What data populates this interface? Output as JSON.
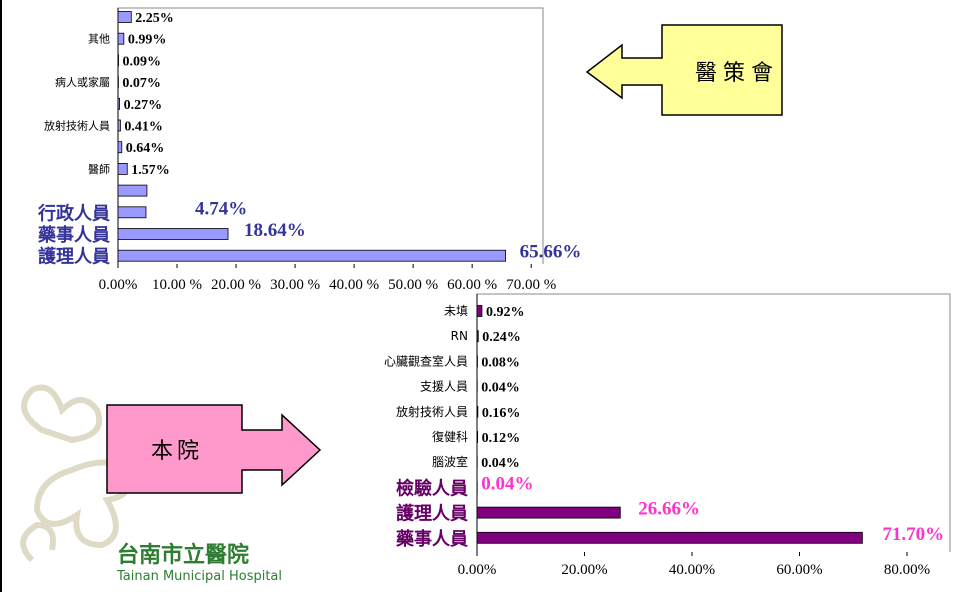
{
  "chart_data": [
    {
      "type": "bar",
      "orientation": "horizontal",
      "categories": [
        null,
        "其他",
        null,
        "病人或家屬",
        null,
        "放射技術人員",
        null,
        "醫師",
        null,
        "行政人員",
        "藥事人員",
        "護理人員"
      ],
      "values": [
        2.25,
        0.99,
        0.09,
        0.07,
        0.27,
        0.41,
        0.64,
        1.57,
        4.9,
        4.74,
        18.64,
        65.66
      ],
      "value_labels": [
        "2.25%",
        "0.99%",
        "0.09%",
        "0.07%",
        "0.27%",
        "0.41%",
        "0.64%",
        "1.57%",
        null,
        "4.74%",
        "18.64%",
        "65.66%"
      ],
      "color": "#9999ff",
      "label_color": "#333399",
      "value_label_color": "#333399",
      "xlim": [
        0,
        72
      ],
      "xticks": [
        {
          "value": 0,
          "label": "0.00%"
        },
        {
          "value": 10,
          "label": "10.00 %"
        },
        {
          "value": 20,
          "label": "20.00 %"
        },
        {
          "value": 30,
          "label": "30.00 %"
        },
        {
          "value": 40,
          "label": "40.00 %"
        },
        {
          "value": 50,
          "label": "50.00 %"
        },
        {
          "value": 60,
          "label": "60.00 %"
        },
        {
          "value": 70,
          "label": "70.00 %"
        }
      ]
    },
    {
      "type": "bar",
      "orientation": "horizontal",
      "categories": [
        "未填",
        "RN",
        "心臟觀查室人員",
        "支援人員",
        "放射技術人員",
        "復健科",
        "腦波室",
        "檢驗人員",
        "護理人員",
        "藥事人員"
      ],
      "values": [
        0.92,
        0.24,
        0.08,
        0.04,
        0.16,
        0.12,
        0.04,
        0.04,
        26.66,
        71.7
      ],
      "value_labels": [
        "0.92%",
        "0.24%",
        "0.08%",
        "0.04%",
        "0.16%",
        "0.12%",
        "0.04%",
        "0.04%",
        "26.66%",
        "71.70%"
      ],
      "color": "#800080",
      "label_color": "#660066",
      "value_label_color": "#ff33cc",
      "xlim": [
        0,
        88
      ],
      "xticks": [
        {
          "value": 0,
          "label": "0.00%"
        },
        {
          "value": 20,
          "label": "20.00%"
        },
        {
          "value": 40,
          "label": "40.00%"
        },
        {
          "value": 60,
          "label": "60.00%"
        },
        {
          "value": 80,
          "label": "80.00%"
        }
      ]
    }
  ],
  "callouts": {
    "top": "醫策會",
    "bottom": "本院"
  },
  "logo": {
    "name": "台南市立醫院",
    "subtitle": "Tainan Municipal Hospital"
  }
}
